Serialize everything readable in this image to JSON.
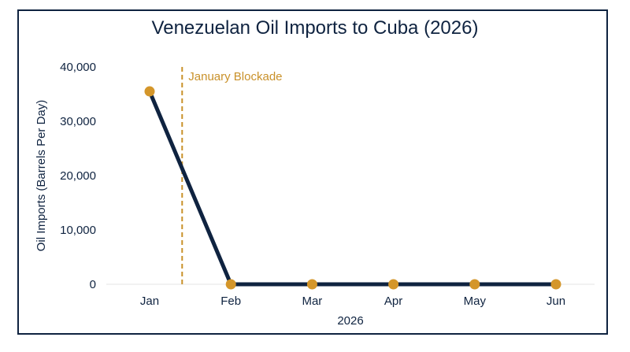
{
  "chart_data": {
    "type": "line",
    "title": "Venezuelan Oil Imports to Cuba (2026)",
    "xlabel": "2026",
    "ylabel": "Oil Imports (Barrels Per Day)",
    "categories": [
      "Jan",
      "Feb",
      "Mar",
      "Apr",
      "May",
      "Jun"
    ],
    "series": [
      {
        "values": [
          35500,
          0,
          0,
          0,
          0,
          0
        ]
      }
    ],
    "ylim": [
      0,
      40000
    ],
    "yticks": [
      "0",
      "10,000",
      "20,000",
      "30,000",
      "40,000"
    ],
    "ytick_values": [
      0,
      10000,
      20000,
      30000,
      40000
    ],
    "annotation": {
      "label": "January Blockade",
      "x_position": 1.4
    },
    "grid": false,
    "colors": {
      "line": "#0f2340",
      "marker": "#d4962a",
      "annotation": "#c9912a",
      "frame": "#0f2340"
    }
  }
}
